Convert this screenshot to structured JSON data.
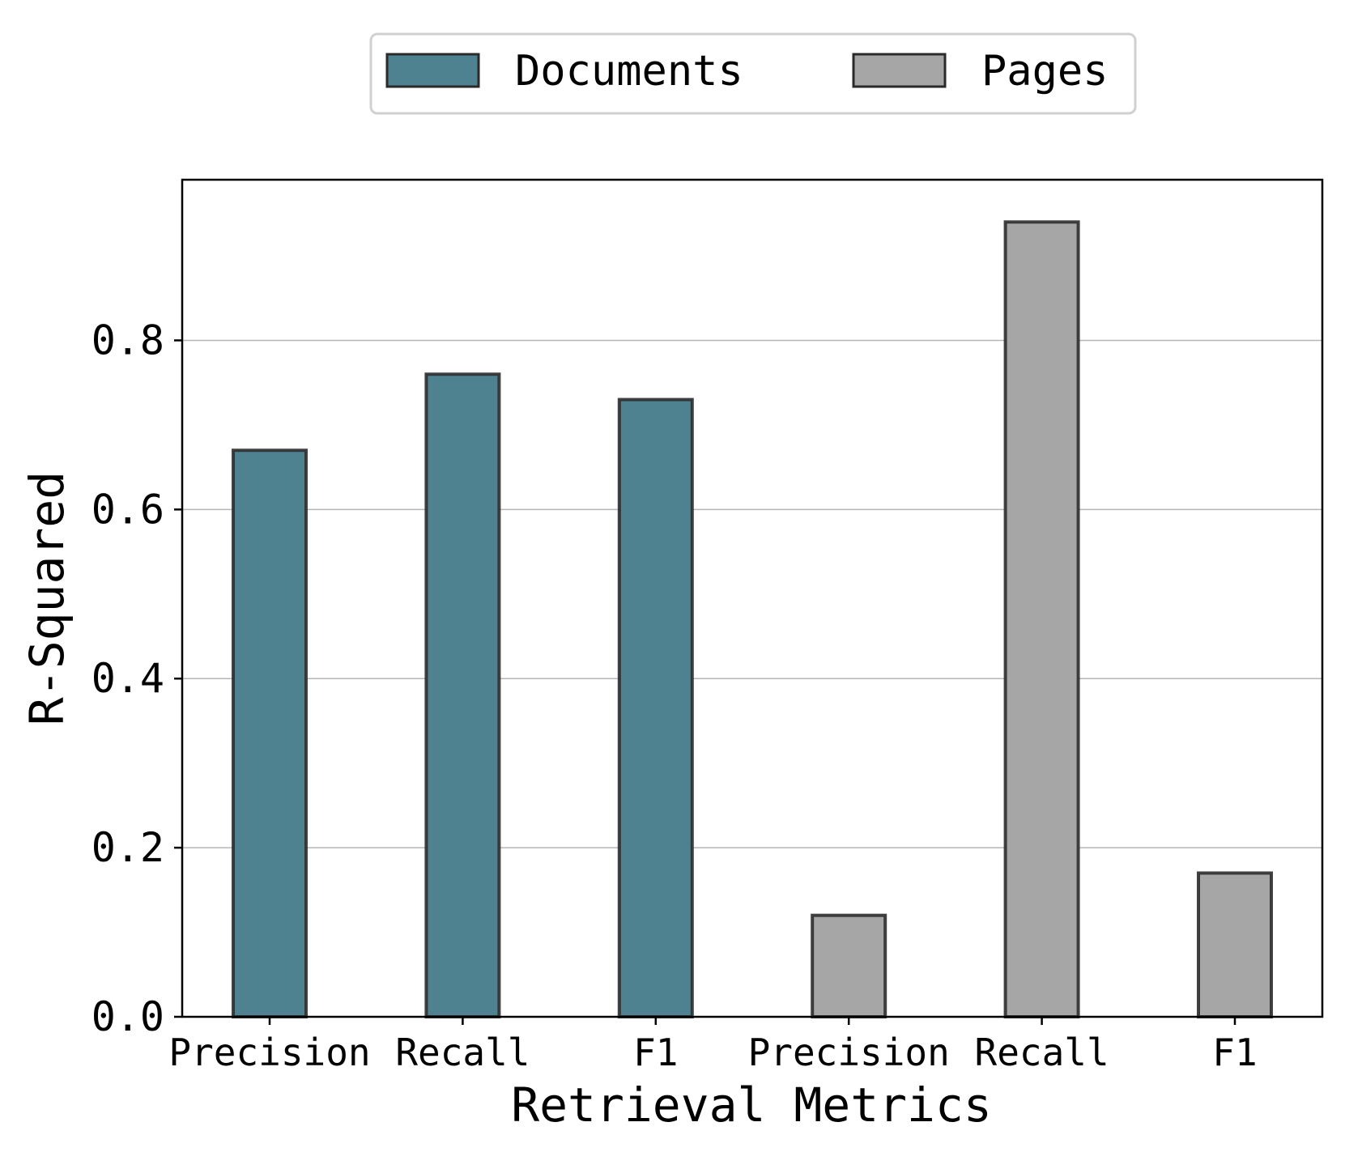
{
  "chart_data": {
    "type": "bar",
    "title": "",
    "xlabel": "Retrieval Metrics",
    "ylabel": "R-Squared",
    "ylim": [
      0,
      0.99
    ],
    "yticks": [
      "0.0",
      "0.2",
      "0.4",
      "0.6",
      "0.8"
    ],
    "ytick_values": [
      0.0,
      0.2,
      0.4,
      0.6,
      0.8
    ],
    "grid": "horizontal",
    "legend_position": "top-center",
    "categories": [
      "Precision",
      "Recall",
      "F1",
      "Precision",
      "Recall",
      "F1"
    ],
    "series": [
      {
        "name": "Documents",
        "color": "#4e8290",
        "values": [
          0.67,
          0.76,
          0.73,
          null,
          null,
          null
        ]
      },
      {
        "name": "Pages",
        "color": "#a6a6a6",
        "values": [
          null,
          null,
          null,
          0.12,
          0.94,
          0.17
        ]
      }
    ]
  }
}
